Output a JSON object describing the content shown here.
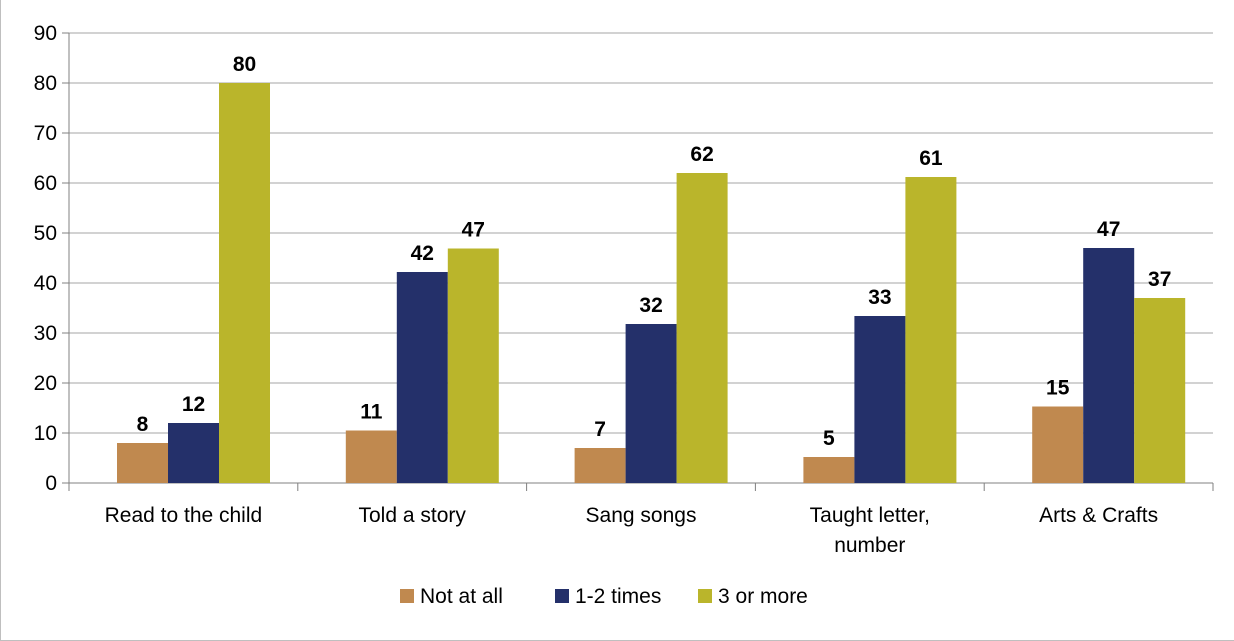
{
  "chart_data": {
    "type": "bar",
    "categories": [
      [
        "Read to the child"
      ],
      [
        "Told a story"
      ],
      [
        "Sang songs"
      ],
      [
        "Taught letter,",
        "number"
      ],
      [
        "Arts & Crafts"
      ]
    ],
    "series": [
      {
        "name": "Not at all",
        "color": "#C0894F",
        "values": [
          8,
          10.5,
          7,
          5.2,
          15.3
        ],
        "labels": [
          "8",
          "11",
          "7",
          "5",
          "15"
        ]
      },
      {
        "name": "1-2 times",
        "color": "#24306A",
        "values": [
          12,
          42.2,
          31.8,
          33.4,
          47
        ],
        "labels": [
          "12",
          "42",
          "32",
          "33",
          "47"
        ]
      },
      {
        "name": "3 or more",
        "color": "#BAB52B",
        "values": [
          80,
          46.9,
          62,
          61.2,
          37
        ],
        "labels": [
          "80",
          "47",
          "62",
          "61",
          "37"
        ]
      }
    ],
    "yticks": [
      "0",
      "10",
      "20",
      "30",
      "40",
      "50",
      "60",
      "70",
      "80",
      "90"
    ],
    "ylim": [
      0,
      90
    ],
    "grid": true,
    "legend_position": "bottom"
  }
}
